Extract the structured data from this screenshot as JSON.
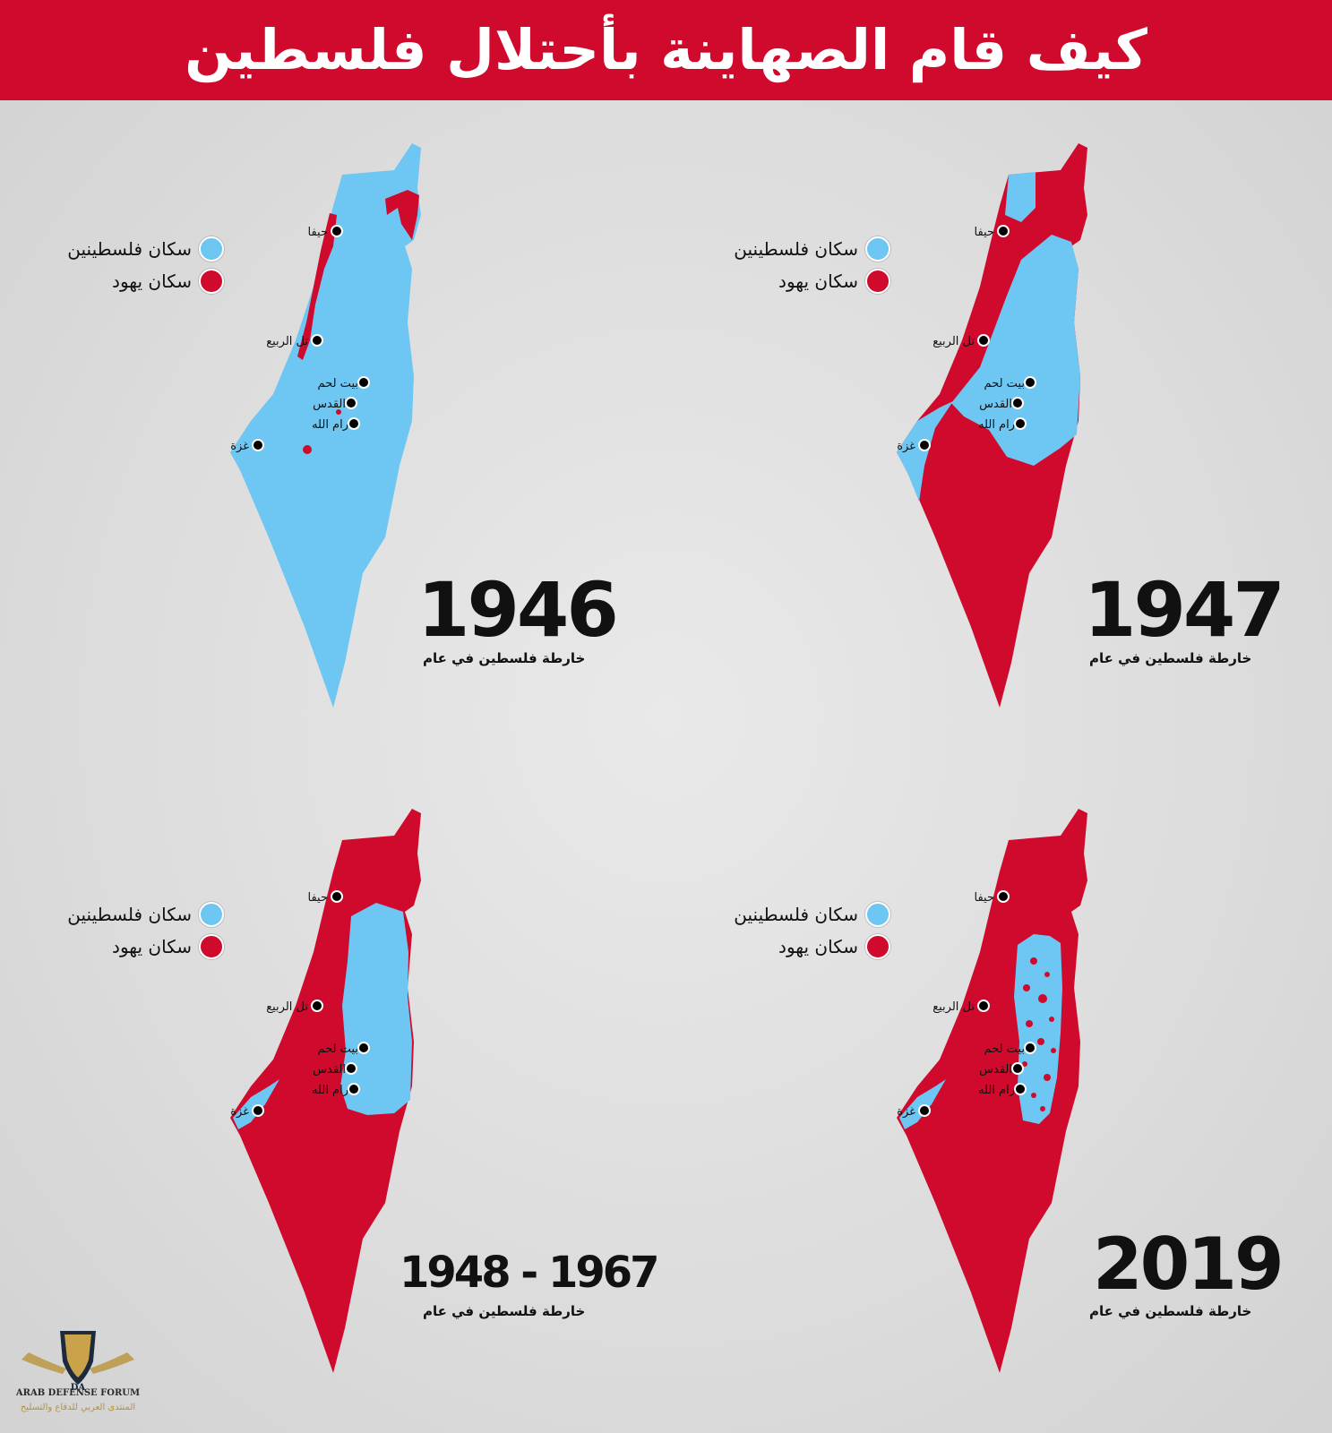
{
  "title": "كيف قام الصهاينة بأحتلال فلسطين",
  "colors": {
    "palestinian": "#6ec6f3",
    "jewish": "#cf0a2c",
    "header": "#cf0a2c"
  },
  "legend": {
    "palestinian": "سكان فلسطينين",
    "jewish": "سكان يهود"
  },
  "caption": "خارطة فلسطين في عام",
  "cities": {
    "haifa": "حيفا",
    "telaviv": "تل الربيع",
    "bethlehem": "بيت لحم",
    "jerusalem": "القدس",
    "ramallah": "رام الله",
    "gaza": "غزة"
  },
  "maps": [
    {
      "year": "1946"
    },
    {
      "year": "1947"
    },
    {
      "year": "1948 - 1967"
    },
    {
      "year": "2019"
    }
  ],
  "watermark": {
    "logo": "DA",
    "name": "ARAB DEFENSE FORUM",
    "name_ar": "المنتدى العربي للدفاع والتسليح"
  }
}
